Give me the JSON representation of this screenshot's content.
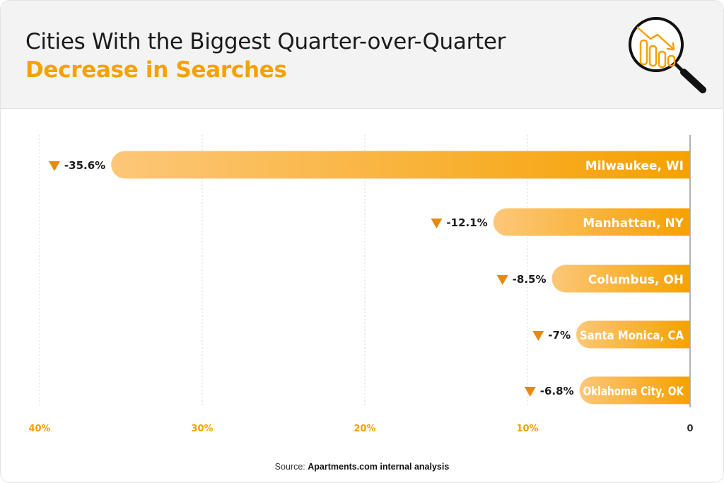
{
  "header": {
    "title": "Cities With the Biggest Quarter-over-Quarter",
    "subtitle": "Decrease in Searches",
    "icon": "magnifier-declining-chart-icon"
  },
  "colors": {
    "accent": "#f5a100",
    "bar_start": "#fdc779",
    "bar_end": "#f5a100",
    "marker": "#e8890c",
    "gridline": "#d6d6d6"
  },
  "chart_data": {
    "type": "bar",
    "orientation": "horizontal",
    "direction": "right-to-left",
    "categories": [
      "Milwaukee, WI",
      "Manhattan, NY",
      "Columbus, OH",
      "Santa Monica, CA",
      "Oklahoma City, OK"
    ],
    "values": [
      35.6,
      12.1,
      8.5,
      7,
      6.8
    ],
    "value_labels": [
      "-35.6%",
      "-12.1%",
      "-8.5%",
      "-7%",
      "-6.8%"
    ],
    "ticks": [
      40,
      30,
      20,
      10,
      0
    ],
    "tick_labels": [
      "40%",
      "30%",
      "20%",
      "10%",
      "0"
    ],
    "xlim": [
      0,
      40
    ],
    "grid": true
  },
  "source": {
    "prefix": "Source: ",
    "text": "Apartments.com internal analysis"
  }
}
